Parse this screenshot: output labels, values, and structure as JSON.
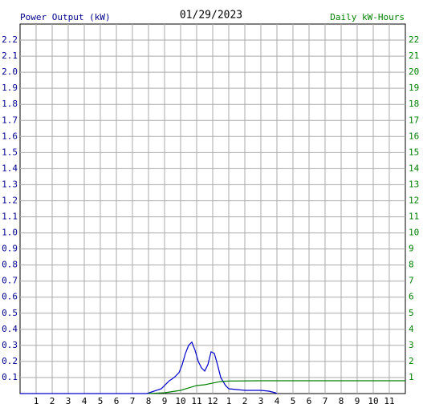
{
  "chart_data": {
    "type": "line",
    "title": "01/29/2023",
    "y_label": "Power Output (kW)",
    "y2_label": "Daily kW-Hours",
    "xlim": [
      0,
      24
    ],
    "xticks": [
      1,
      2,
      3,
      4,
      5,
      6,
      7,
      8,
      9,
      10,
      11,
      12,
      {
        "value": 13,
        "label": "1"
      },
      {
        "value": 14,
        "label": "2"
      },
      {
        "value": 15,
        "label": "3"
      },
      {
        "value": 16,
        "label": "4"
      },
      {
        "value": 17,
        "label": "5"
      },
      {
        "value": 18,
        "label": "6"
      },
      {
        "value": 19,
        "label": "7"
      },
      {
        "value": 20,
        "label": "8"
      },
      {
        "value": 21,
        "label": "9"
      },
      {
        "value": 22,
        "label": "10"
      },
      {
        "value": 23,
        "label": "11"
      }
    ],
    "ylim": [
      0,
      2.3
    ],
    "yticks": [
      0.1,
      0.2,
      0.3,
      0.4,
      0.5,
      0.6,
      0.7,
      0.8,
      0.9,
      {
        "value": 1,
        "label": "1.0"
      },
      1.1,
      1.2,
      1.3,
      1.4,
      1.5,
      1.6,
      1.7,
      1.8,
      1.9,
      {
        "value": 2,
        "label": "2.0"
      },
      2.1,
      2.2
    ],
    "y2lim": [
      0,
      23
    ],
    "y2ticks": [
      1,
      2,
      3,
      4,
      5,
      6,
      7,
      8,
      9,
      10,
      11,
      12,
      13,
      14,
      15,
      16,
      17,
      18,
      19,
      20,
      21,
      22
    ],
    "grid": true,
    "y_color": "#00008b",
    "y2_color": "#008000",
    "series": [
      {
        "name": "Power Output",
        "color": "#0000cc",
        "x": [
          0,
          7.9,
          8.2,
          8.5,
          8.8,
          9.0,
          9.3,
          9.6,
          9.9,
          10.1,
          10.3,
          10.5,
          10.7,
          10.9,
          11.1,
          11.3,
          11.5,
          11.7,
          11.9,
          12.1,
          12.3,
          12.5,
          12.8,
          13.0,
          13.5,
          14,
          15,
          15.5,
          15.9,
          16
        ],
        "values": [
          0,
          0,
          0.01,
          0.02,
          0.03,
          0.05,
          0.08,
          0.1,
          0.13,
          0.18,
          0.25,
          0.3,
          0.32,
          0.27,
          0.2,
          0.16,
          0.14,
          0.18,
          0.26,
          0.25,
          0.18,
          0.1,
          0.05,
          0.03,
          0.025,
          0.02,
          0.02,
          0.015,
          0.005,
          0
        ]
      },
      {
        "name": "Daily kW-Hours",
        "color": "#008000",
        "axis": "y2",
        "x": [
          8,
          9,
          10,
          10.5,
          11,
          11.5,
          12,
          12.5,
          13,
          15,
          24
        ],
        "values": [
          0,
          0.05,
          0.2,
          0.35,
          0.5,
          0.55,
          0.65,
          0.75,
          0.78,
          0.8,
          0.8
        ]
      }
    ]
  }
}
